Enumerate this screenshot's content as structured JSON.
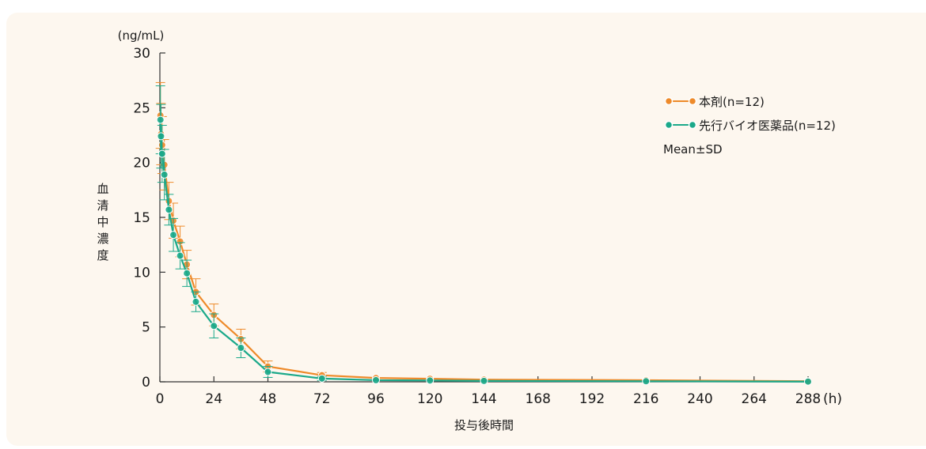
{
  "chart_data": {
    "type": "line",
    "y_unit_label": "(ng/mL)",
    "x_unit_label": "(h)",
    "ylabel": "血清中濃度",
    "xlabel": "投与後時間",
    "xlim": [
      0,
      288
    ],
    "ylim": [
      0,
      30
    ],
    "x_ticks": [
      0,
      24,
      48,
      72,
      96,
      120,
      144,
      168,
      192,
      216,
      240,
      264,
      288
    ],
    "y_ticks": [
      0,
      5,
      10,
      15,
      20,
      25,
      30
    ],
    "legend_position": "top-right",
    "legend_note": "Mean±SD",
    "x": [
      0.25,
      0.5,
      1,
      2,
      4,
      6,
      9,
      12,
      16,
      24,
      36,
      48,
      72,
      96,
      120,
      144,
      216,
      288
    ],
    "series": [
      {
        "name": "本剤(n=12)",
        "color": "#ee8a2a",
        "values": [
          24.3,
          22.6,
          21.6,
          19.8,
          16.5,
          14.7,
          12.8,
          10.7,
          8.2,
          6.1,
          3.9,
          1.4,
          0.6,
          0.35,
          0.28,
          0.2,
          0.15,
          0.05
        ],
        "sd": [
          3.0,
          2.8,
          2.6,
          2.3,
          1.7,
          1.6,
          1.4,
          1.3,
          1.2,
          1.0,
          0.9,
          0.5,
          0.25,
          0.15,
          0.12,
          0.1,
          0.1,
          0.05
        ]
      },
      {
        "name": "先行バイオ医薬品(n=12)",
        "color": "#1ba98a",
        "values": [
          23.9,
          22.4,
          20.8,
          18.9,
          15.7,
          13.4,
          11.5,
          9.9,
          7.3,
          5.1,
          3.1,
          0.9,
          0.3,
          0.15,
          0.12,
          0.08,
          0.05,
          0.02
        ],
        "sd": [
          3.1,
          2.9,
          2.6,
          2.3,
          1.4,
          1.5,
          1.2,
          1.2,
          0.9,
          1.1,
          0.9,
          0.5,
          0.2,
          0.1,
          0.08,
          0.05,
          0.05,
          0.02
        ]
      }
    ]
  }
}
